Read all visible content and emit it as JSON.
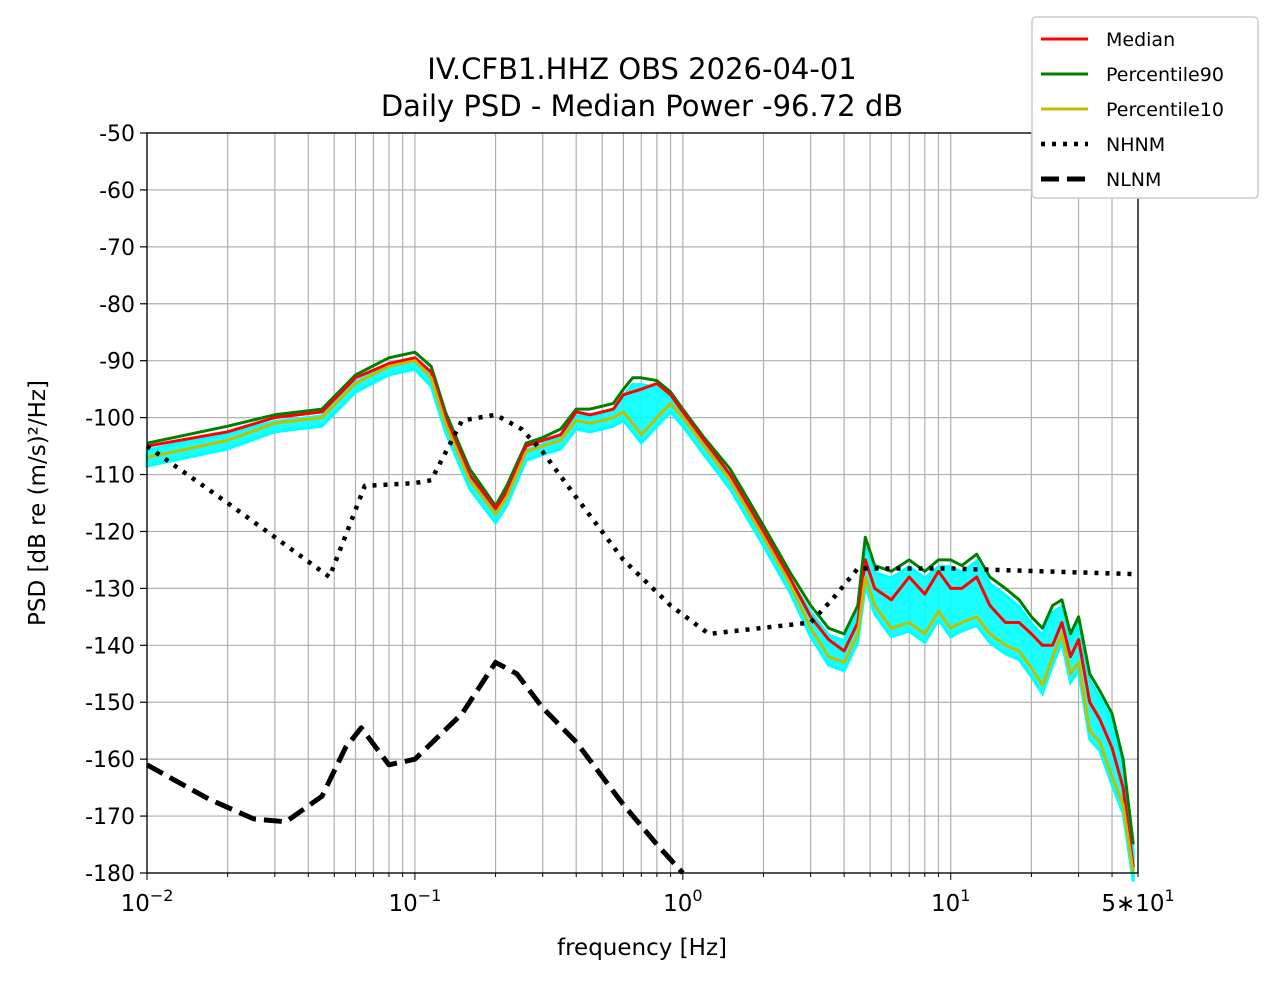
{
  "chart_data": {
    "type": "line",
    "title": "IV.CFB1.HHZ OBS 2026-04-01",
    "subtitle": "Daily PSD - Median Power -96.72 dB",
    "xlabel": "frequency [Hz]",
    "ylabel": "PSD [dB re (m/s)²/Hz]",
    "x_scale": "log",
    "xlim": [
      0.01,
      50
    ],
    "ylim": [
      -180,
      -50
    ],
    "grid": true,
    "legend_position": "top-right, outside plot",
    "x_ticks": [
      {
        "value": 0.01,
        "base": "10",
        "exp": "−2",
        "prefix": ""
      },
      {
        "value": 0.1,
        "base": "10",
        "exp": "−1",
        "prefix": ""
      },
      {
        "value": 1,
        "base": "10",
        "exp": "0",
        "prefix": ""
      },
      {
        "value": 10,
        "base": "10",
        "exp": "1",
        "prefix": ""
      },
      {
        "value": 50,
        "base": "10",
        "exp": "1",
        "prefix": "5∗"
      }
    ],
    "y_ticks": [
      -50,
      -60,
      -70,
      -80,
      -90,
      -100,
      -110,
      -120,
      -130,
      -140,
      -150,
      -160,
      -170,
      -180
    ],
    "y_tick_labels": [
      "-50",
      "-60",
      "-70",
      "-80",
      "-90",
      "-100",
      "-110",
      "-120",
      "-130",
      "-140",
      "-150",
      "-160",
      "-170",
      "-180"
    ],
    "series": [
      {
        "name": "Median",
        "color": "#ff0000",
        "style": "solid",
        "x": [
          0.01,
          0.02,
          0.03,
          0.045,
          0.06,
          0.08,
          0.1,
          0.115,
          0.13,
          0.16,
          0.2,
          0.22,
          0.26,
          0.3,
          0.35,
          0.4,
          0.45,
          0.5,
          0.55,
          0.6,
          0.7,
          0.8,
          0.9,
          1.0,
          1.2,
          1.5,
          2.0,
          2.5,
          3.0,
          3.5,
          4.0,
          4.5,
          4.8,
          5.2,
          6.0,
          7.0,
          8.0,
          9.0,
          10.0,
          11.0,
          12.5,
          14.0,
          16.0,
          18.0,
          20.0,
          22.0,
          24.0,
          26.0,
          28.0,
          30.0,
          33.0,
          36.0,
          40.0,
          44.0,
          48.0
        ],
        "y": [
          -105,
          -102.5,
          -100,
          -99,
          -93,
          -90.5,
          -89.5,
          -92,
          -100,
          -110,
          -116,
          -113,
          -105,
          -104,
          -103,
          -99,
          -99.5,
          -99,
          -98.5,
          -96,
          -95,
          -94,
          -96,
          -99,
          -104,
          -110,
          -120,
          -128,
          -135,
          -139,
          -141,
          -136,
          -125,
          -130,
          -132,
          -128,
          -131,
          -127,
          -130,
          -130,
          -128,
          -133,
          -136,
          -136,
          -138,
          -140,
          -140,
          -136,
          -142,
          -139,
          -150,
          -153,
          -158,
          -165,
          -179
        ]
      },
      {
        "name": "Percentile90",
        "color": "#008000",
        "style": "solid",
        "x": [
          0.01,
          0.02,
          0.03,
          0.045,
          0.06,
          0.08,
          0.1,
          0.115,
          0.13,
          0.16,
          0.2,
          0.22,
          0.26,
          0.3,
          0.35,
          0.4,
          0.45,
          0.5,
          0.55,
          0.6,
          0.65,
          0.7,
          0.8,
          0.9,
          1.0,
          1.2,
          1.5,
          2.0,
          2.5,
          3.0,
          3.5,
          4.0,
          4.5,
          4.8,
          5.2,
          6.0,
          7.0,
          8.0,
          9.0,
          10.0,
          11.0,
          12.5,
          14.0,
          16.0,
          18.0,
          20.0,
          22.0,
          24.0,
          26.0,
          28.0,
          30.0,
          33.0,
          36.0,
          40.0,
          44.0,
          48.0
        ],
        "y": [
          -104.5,
          -101.5,
          -99.5,
          -98.5,
          -92.5,
          -89.5,
          -88.5,
          -91,
          -99,
          -109,
          -115.5,
          -112,
          -104.5,
          -103.5,
          -102,
          -98.5,
          -98.5,
          -98,
          -97.5,
          -95,
          -93,
          -93,
          -93.5,
          -95.5,
          -98.5,
          -103.5,
          -109,
          -119,
          -127,
          -133,
          -137,
          -138,
          -133,
          -121,
          -126,
          -127,
          -125,
          -127,
          -125,
          -125,
          -126,
          -124,
          -128,
          -130,
          -132,
          -135,
          -137,
          -133,
          -132,
          -138,
          -135,
          -145,
          -148,
          -152,
          -160,
          -175
        ]
      },
      {
        "name": "Percentile10",
        "color": "#bfbf00",
        "style": "solid",
        "x": [
          0.01,
          0.02,
          0.03,
          0.045,
          0.06,
          0.08,
          0.1,
          0.115,
          0.13,
          0.16,
          0.2,
          0.22,
          0.26,
          0.3,
          0.35,
          0.4,
          0.45,
          0.5,
          0.55,
          0.6,
          0.65,
          0.7,
          0.8,
          0.9,
          1.0,
          1.2,
          1.5,
          2.0,
          2.5,
          3.0,
          3.5,
          4.0,
          4.5,
          4.8,
          5.2,
          6.0,
          7.0,
          8.0,
          9.0,
          10.0,
          11.0,
          12.5,
          14.0,
          16.0,
          18.0,
          20.0,
          22.0,
          24.0,
          26.0,
          28.0,
          30.0,
          33.0,
          36.0,
          40.0,
          44.0,
          48.0
        ],
        "y": [
          -107,
          -104,
          -101,
          -100,
          -94,
          -91,
          -90,
          -93,
          -101,
          -111,
          -117,
          -114,
          -106,
          -105,
          -104,
          -100.5,
          -101,
          -100.5,
          -100,
          -99,
          -101,
          -103,
          -100,
          -97.5,
          -100,
          -105,
          -111,
          -121,
          -129,
          -137,
          -142,
          -143,
          -138,
          -128,
          -133,
          -137,
          -136,
          -138,
          -134,
          -137,
          -136,
          -135,
          -138,
          -140,
          -141,
          -144,
          -147,
          -142,
          -138,
          -145,
          -143,
          -155,
          -157,
          -163,
          -168,
          -180
        ]
      },
      {
        "name": "NHNM",
        "color": "#000000",
        "style": "dotted",
        "x": [
          0.01,
          0.02,
          0.03,
          0.048,
          0.065,
          0.1,
          0.115,
          0.15,
          0.2,
          0.25,
          0.3,
          0.4,
          0.6,
          0.9,
          1.25,
          3.0,
          3.6,
          4.5,
          10.0,
          50.0
        ],
        "y": [
          -105,
          -115,
          -121,
          -128,
          -112,
          -111.5,
          -111,
          -100.5,
          -99.5,
          -102,
          -106,
          -114,
          -125,
          -133,
          -138,
          -136,
          -132,
          -126.5,
          -126.5,
          -127.5
        ]
      },
      {
        "name": "NLNM",
        "color": "#000000",
        "style": "dashed",
        "x": [
          0.01,
          0.017,
          0.025,
          0.033,
          0.045,
          0.055,
          0.063,
          0.08,
          0.1,
          0.15,
          0.2,
          0.24,
          0.3,
          0.4,
          0.6,
          0.8,
          1.0
        ],
        "y": [
          -161,
          -167,
          -170.5,
          -171,
          -166.5,
          -158,
          -154.5,
          -161,
          -160,
          -152,
          -143,
          -145,
          -151,
          -157,
          -168,
          -175,
          -180
        ]
      }
    ],
    "band_color": "#00ffff"
  }
}
